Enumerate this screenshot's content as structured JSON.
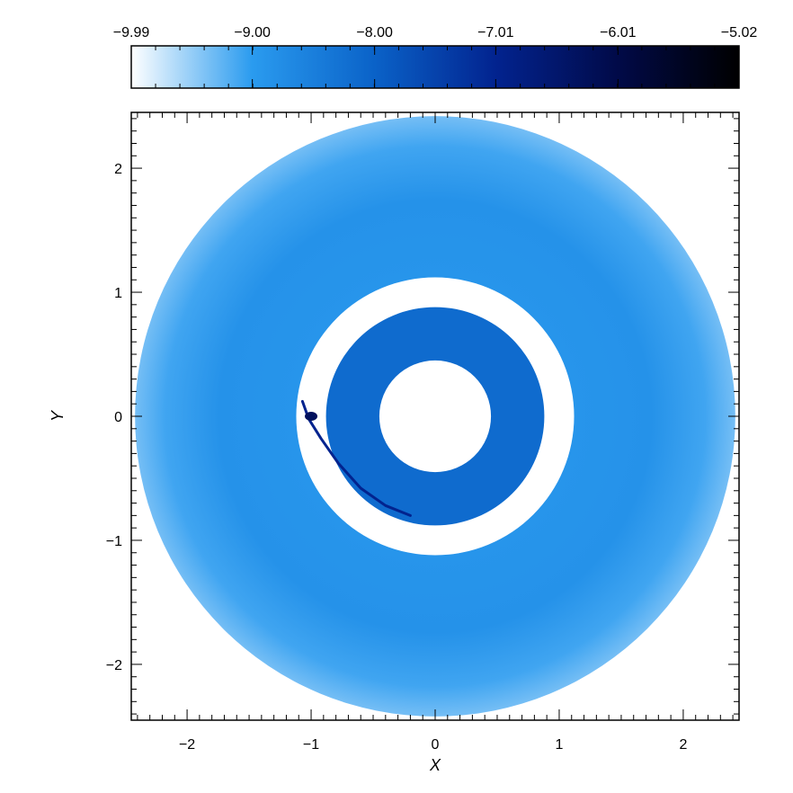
{
  "chart_data": {
    "type": "heatmap",
    "title": "",
    "xlabel": "X",
    "ylabel": "Y",
    "xlim": [
      -2.45,
      2.45
    ],
    "ylim": [
      -2.45,
      2.45
    ],
    "xticks": [
      -2,
      -1,
      0,
      1,
      2
    ],
    "yticks": [
      -2,
      -1,
      0,
      1,
      2
    ],
    "xtick_labels": [
      "−2",
      "−1",
      "0",
      "1",
      "2"
    ],
    "ytick_labels": [
      "−2",
      "−1",
      "0",
      "1",
      "2"
    ],
    "grid": false,
    "colorbar": {
      "position": "top",
      "range": [
        -9.99,
        -5.02
      ],
      "ticks": [
        -9.99,
        -9.0,
        -8.0,
        -7.01,
        -6.01,
        -5.02
      ],
      "tick_labels": [
        "−9.99",
        "−9.00",
        "−8.00",
        "−7.01",
        "−6.01",
        "−5.02"
      ],
      "colormap": [
        {
          "value": -9.99,
          "color": "#ffffff"
        },
        {
          "value": -9.0,
          "color": "#2a9bef"
        },
        {
          "value": -8.0,
          "color": "#0a62c8"
        },
        {
          "value": -7.01,
          "color": "#02238f"
        },
        {
          "value": -6.01,
          "color": "#010a48"
        },
        {
          "value": -5.02,
          "color": "#000000"
        }
      ]
    },
    "features": [
      {
        "name": "outer-disk",
        "shape": "annulus",
        "center": [
          0,
          0
        ],
        "r_inner": 1.12,
        "r_outer": 2.42,
        "value_at_inner": -8.9,
        "value_mid": -8.85,
        "value_at_outer": -9.35
      },
      {
        "name": "gap",
        "shape": "annulus",
        "center": [
          0,
          0
        ],
        "r_inner": 0.88,
        "r_outer": 1.12,
        "value": -9.99
      },
      {
        "name": "inner-disk",
        "shape": "annulus",
        "center": [
          0,
          0
        ],
        "r_inner": 0.45,
        "r_outer": 0.88,
        "value": -8.15
      },
      {
        "name": "central-hole",
        "shape": "circle",
        "center": [
          0,
          0
        ],
        "radius": 0.45,
        "value": -9.99
      },
      {
        "name": "spiral-arm",
        "shape": "curve",
        "points": [
          [
            -1.07,
            0.12
          ],
          [
            -1.02,
            -0.02
          ],
          [
            -0.92,
            -0.18
          ],
          [
            -0.78,
            -0.38
          ],
          [
            -0.6,
            -0.58
          ],
          [
            -0.4,
            -0.72
          ],
          [
            -0.2,
            -0.8
          ]
        ],
        "value": -7.0
      },
      {
        "name": "planet",
        "shape": "point",
        "x": -1.0,
        "y": 0.0,
        "value": -6.3
      }
    ]
  }
}
